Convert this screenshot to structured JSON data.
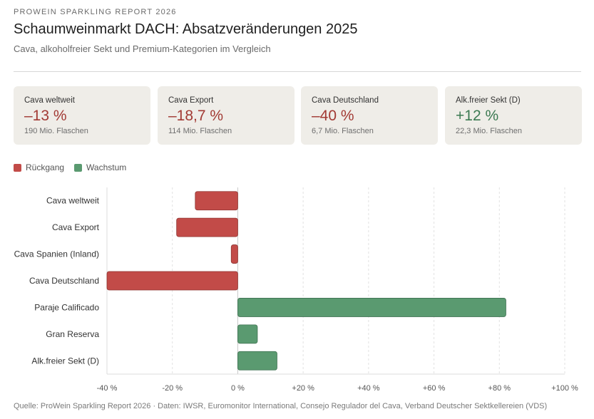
{
  "header": {
    "eyebrow": "PROWEIN SPARKLING REPORT 2026",
    "title": "Schaumweinmarkt DACH: Absatzveränderungen 2025",
    "subtitle": "Cava, alkoholfreier Sekt und Premium-Kategorien im Vergleich"
  },
  "kpis": [
    {
      "label": "Cava weltweit",
      "value": "–13 %",
      "sub": "190 Mio. Flaschen",
      "trend": "neg"
    },
    {
      "label": "Cava Export",
      "value": "–18,7 %",
      "sub": "114 Mio. Flaschen",
      "trend": "neg"
    },
    {
      "label": "Cava Deutschland",
      "value": "–40 %",
      "sub": "6,7 Mio. Flaschen",
      "trend": "neg"
    },
    {
      "label": "Alk.freier Sekt (D)",
      "value": "+12 %",
      "sub": "22,3 Mio. Flaschen",
      "trend": "pos"
    }
  ],
  "legend": [
    {
      "label": "Rückgang",
      "color": "#c24b48"
    },
    {
      "label": "Wachstum",
      "color": "#5a9a70"
    }
  ],
  "chart_data": {
    "type": "bar",
    "orientation": "horizontal",
    "categories": [
      "Cava weltweit",
      "Cava Export",
      "Cava Spanien (Inland)",
      "Cava Deutschland",
      "Paraje Calificado",
      "Gran Reserva",
      "Alk.freier Sekt (D)"
    ],
    "values": [
      -13,
      -18.7,
      -2,
      -40,
      82,
      6,
      12
    ],
    "xlim": [
      -40,
      100
    ],
    "xticks": [
      -40,
      -20,
      0,
      20,
      40,
      60,
      80,
      100
    ],
    "xtick_labels": [
      "-40 %",
      "-20 %",
      "0 %",
      "+20 %",
      "+40 %",
      "+60 %",
      "+80 %",
      "+100 %"
    ],
    "grid": true,
    "colors": {
      "negative": "#c24b48",
      "positive": "#5a9a70"
    }
  },
  "footer": "Quelle: ProWein Sparkling Report 2026 · Daten: IWSR, Euromonitor International, Consejo Regulador del Cava, Verband Deutscher Sektkellereien (VDS)"
}
